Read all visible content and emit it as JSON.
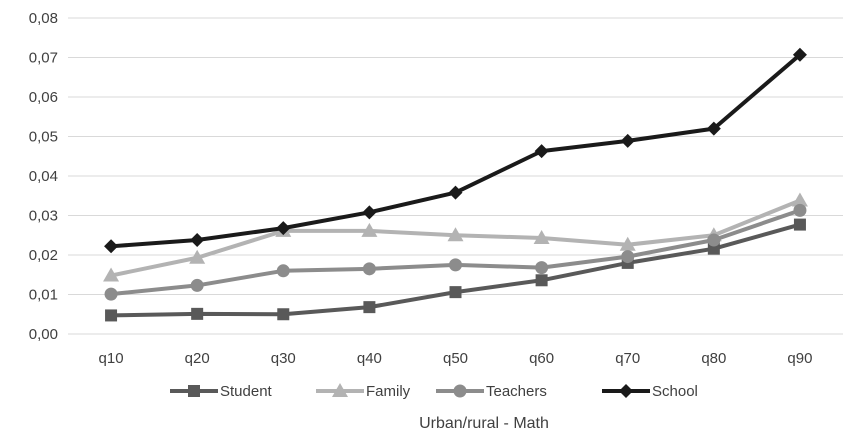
{
  "chart_data": {
    "type": "line",
    "title": "",
    "xlabel": "Urban/rural - Math",
    "ylabel": "",
    "categories": [
      "q10",
      "q20",
      "q30",
      "q40",
      "q50",
      "q60",
      "q70",
      "q80",
      "q90"
    ],
    "ylim": [
      0,
      0.08
    ],
    "yticks": [
      0,
      0.01,
      0.02,
      0.03,
      0.04,
      0.05,
      0.06,
      0.07,
      0.08
    ],
    "ytick_labels": [
      "0,00",
      "0,01",
      "0,02",
      "0,03",
      "0,04",
      "0,05",
      "0,06",
      "0,07",
      "0,08"
    ],
    "grid": true,
    "legend_position": "bottom",
    "series": [
      {
        "name": "Student",
        "marker": "square",
        "color": "#595959",
        "values": [
          0.0047,
          0.0051,
          0.005,
          0.0068,
          0.0106,
          0.0136,
          0.018,
          0.0216,
          0.0277
        ]
      },
      {
        "name": "Family",
        "marker": "triangle",
        "color": "#b3b3b3",
        "values": [
          0.0148,
          0.0193,
          0.0261,
          0.0261,
          0.025,
          0.0243,
          0.0226,
          0.025,
          0.0338
        ]
      },
      {
        "name": "Teachers",
        "marker": "circle",
        "color": "#8c8c8c",
        "values": [
          0.0101,
          0.0123,
          0.016,
          0.0165,
          0.0175,
          0.0168,
          0.0196,
          0.0238,
          0.0313
        ]
      },
      {
        "name": "School",
        "marker": "diamond",
        "color": "#1a1a1a",
        "values": [
          0.0222,
          0.0238,
          0.0268,
          0.0308,
          0.0358,
          0.0463,
          0.0489,
          0.052,
          0.0707
        ]
      }
    ]
  }
}
